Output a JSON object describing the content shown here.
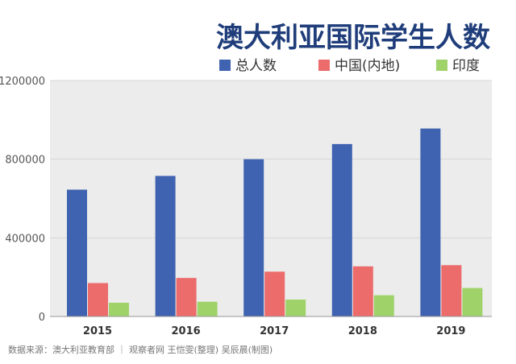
{
  "chart_data": {
    "type": "bar",
    "title": "澳大利亚国际学生人数",
    "categories": [
      "2015",
      "2016",
      "2017",
      "2018",
      "2019"
    ],
    "series": [
      {
        "name": "总人数",
        "color": "#3f63b0",
        "values": [
          645000,
          715000,
          800000,
          877000,
          956000
        ]
      },
      {
        "name": "中国(内地)",
        "color": "#ec6b6b",
        "values": [
          170000,
          196000,
          228000,
          255000,
          261000
        ]
      },
      {
        "name": "印度",
        "color": "#9fd36a",
        "values": [
          70000,
          75000,
          86000,
          108000,
          145000
        ]
      }
    ],
    "yticks": [
      "0",
      "400000",
      "800000",
      "1200000"
    ],
    "ylim": [
      0,
      1200000
    ],
    "grid": true,
    "legend": "top-right",
    "source": "数据来源：澳大利亚教育部 ｜ 观察者网 王恺雯(整理) 吴辰晨(制图)"
  }
}
